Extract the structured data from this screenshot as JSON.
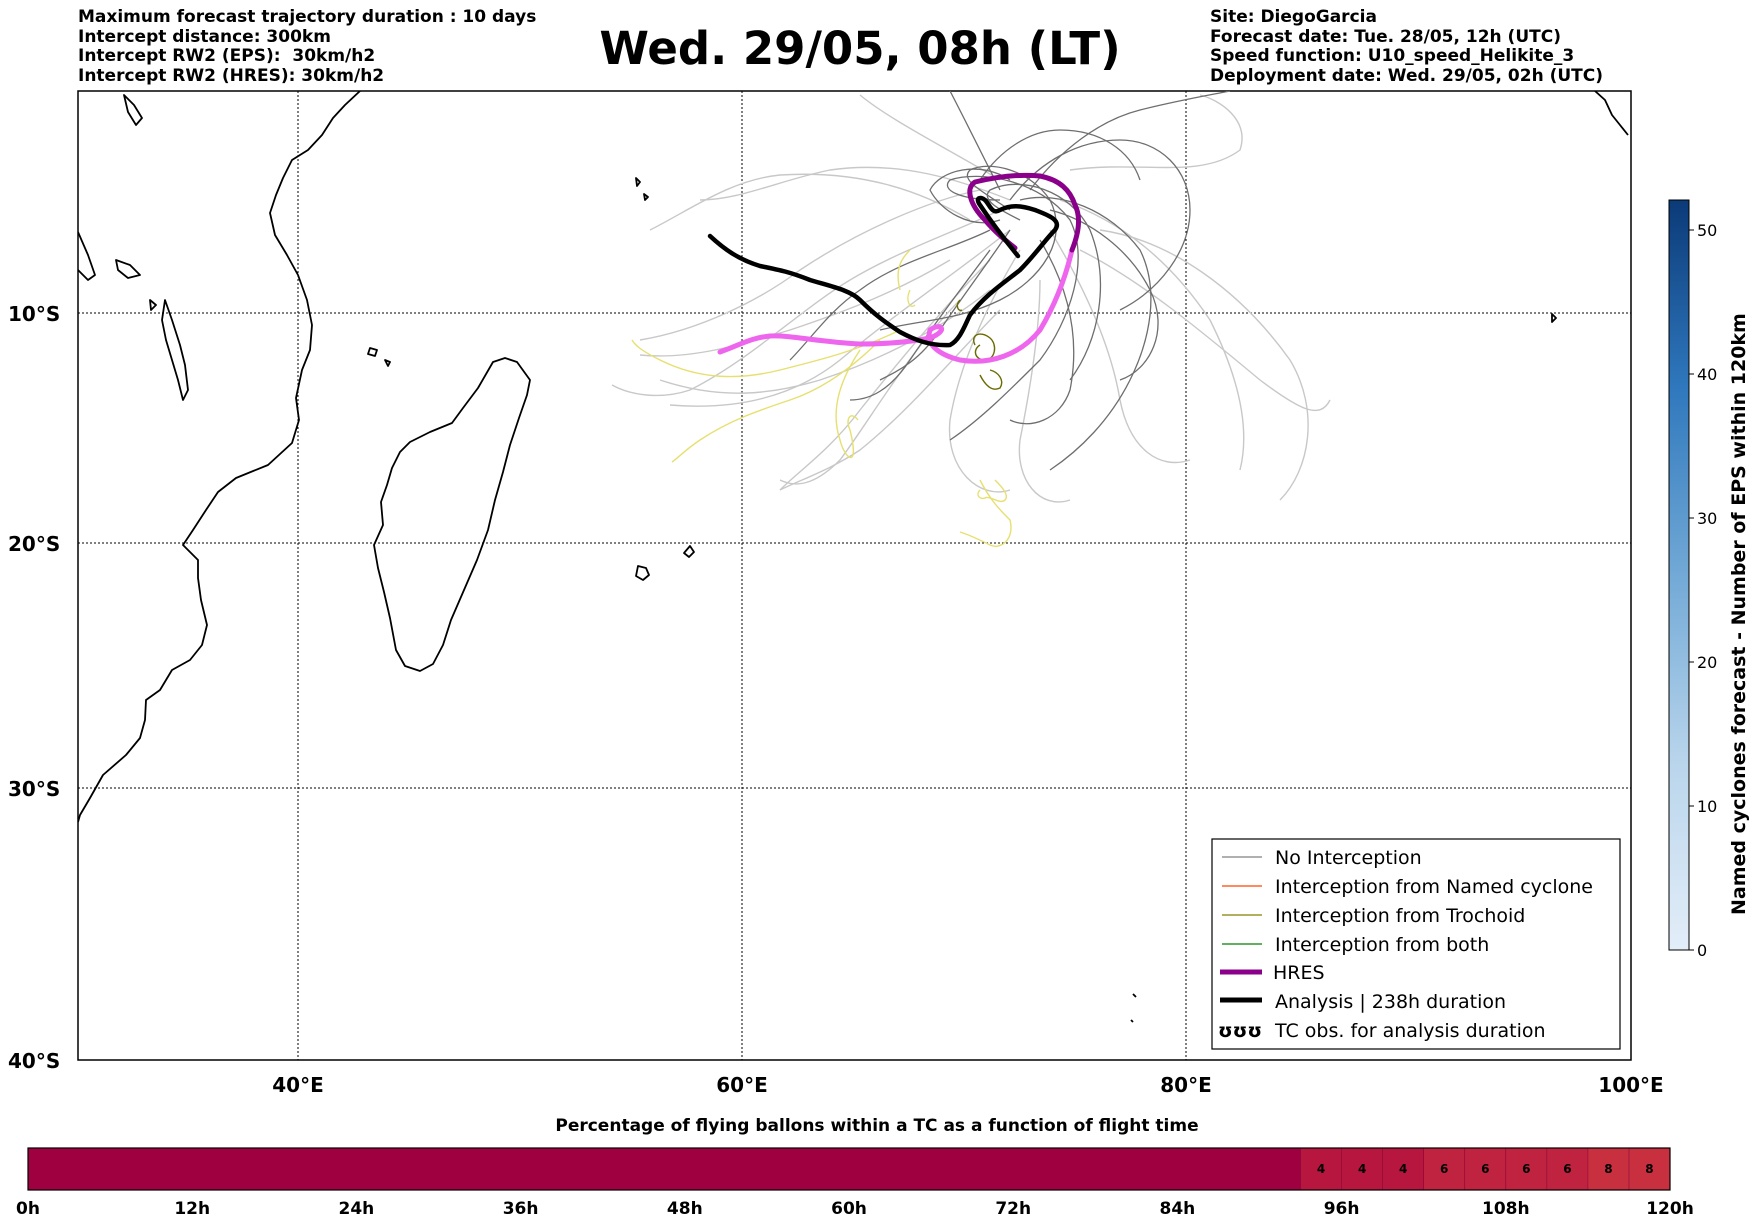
{
  "header": {
    "left": [
      "Maximum forecast trajectory duration : 10 days",
      "Intercept distance: 300km",
      "Intercept RW2 (EPS):  30km/h2",
      "Intercept RW2 (HRES): 30km/h2"
    ],
    "title": "Wed. 29/05, 08h (LT)",
    "right": [
      "Site: DiegoGarcia",
      "Forecast date: Tue. 28/05, 12h (UTC)",
      "Speed function: U10_speed_Helikite_3",
      "Deployment date: Wed. 29/05, 02h (UTC)"
    ]
  },
  "map": {
    "lon_range": [
      30,
      100
    ],
    "lat_range": [
      -40,
      0
    ],
    "lat_labels": [
      "10°S",
      "20°S",
      "30°S",
      "40°S"
    ],
    "lon_labels": [
      "40°E",
      "60°E",
      "80°E",
      "100°E"
    ],
    "gridlines": true
  },
  "legend": {
    "position": "lower-right",
    "items": [
      {
        "label": "No Interception",
        "color": "#808080",
        "style": "thin"
      },
      {
        "label": "Interception from Named cyclone",
        "color": "#ff4500",
        "style": "thin"
      },
      {
        "label": "Interception from Trochoid",
        "color": "#808000",
        "style": "thin"
      },
      {
        "label": "Interception from both",
        "color": "#008000",
        "style": "thin"
      },
      {
        "label": "HRES",
        "color": "#8b008b",
        "style": "thick"
      },
      {
        "label": "Analysis | 238h duration",
        "color": "#000000",
        "style": "thick"
      },
      {
        "label": "TC obs. for analysis duration",
        "color": "#000000",
        "style": "symbol",
        "symbol": "ʊʊʊ"
      }
    ]
  },
  "colorbar": {
    "label": "Named cyclones forecast - Number of EPS within 120km",
    "ticks": [
      "0",
      "10",
      "20",
      "30",
      "40",
      "50"
    ],
    "color_low": "#e3eef8",
    "color_high": "#0b3a78"
  },
  "timeline": {
    "title": "Percentage of flying ballons within a TC as a function of flight time",
    "tick_labels": [
      "0h",
      "12h",
      "24h",
      "36h",
      "48h",
      "60h",
      "72h",
      "84h",
      "96h",
      "108h",
      "120h"
    ],
    "hours_max": 120,
    "cells": [
      {
        "start_h": 0,
        "end_h": 93,
        "value": "",
        "color": "#9f0040"
      },
      {
        "start_h": 93,
        "end_h": 96,
        "value": "4",
        "color": "#b7173f"
      },
      {
        "start_h": 96,
        "end_h": 99,
        "value": "4",
        "color": "#b7173f"
      },
      {
        "start_h": 99,
        "end_h": 102,
        "value": "4",
        "color": "#b7173f"
      },
      {
        "start_h": 102,
        "end_h": 105,
        "value": "6",
        "color": "#c0233f"
      },
      {
        "start_h": 105,
        "end_h": 108,
        "value": "6",
        "color": "#c0233f"
      },
      {
        "start_h": 108,
        "end_h": 111,
        "value": "6",
        "color": "#c0233f"
      },
      {
        "start_h": 111,
        "end_h": 114,
        "value": "6",
        "color": "#c0233f"
      },
      {
        "start_h": 114,
        "end_h": 117,
        "value": "8",
        "color": "#c8303f"
      },
      {
        "start_h": 117,
        "end_h": 120,
        "value": "8",
        "color": "#c8303f"
      }
    ]
  }
}
